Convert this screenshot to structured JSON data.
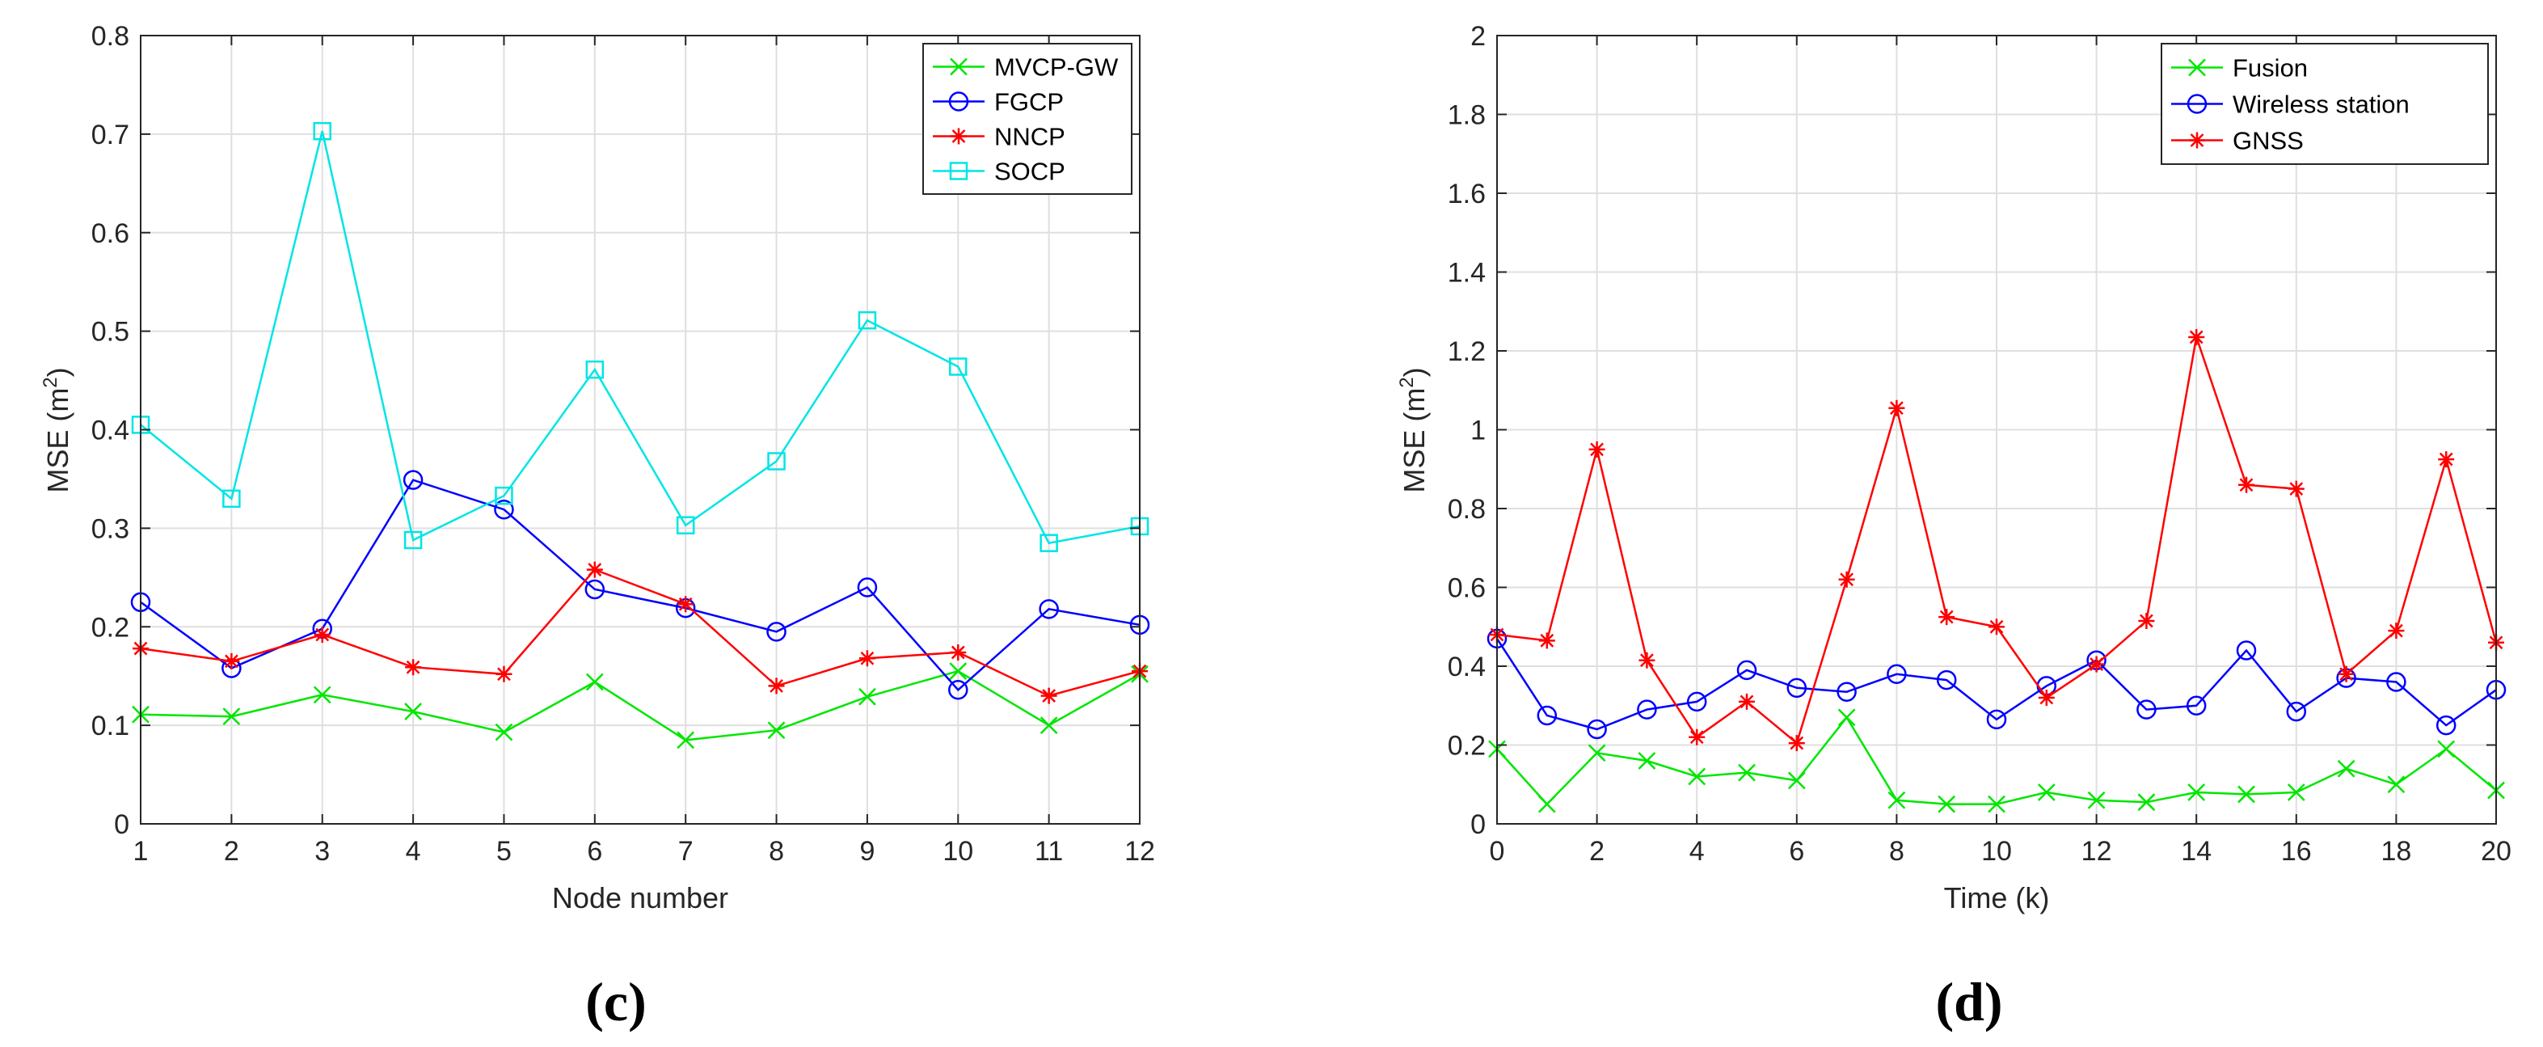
{
  "chart_data": [
    {
      "type": "line",
      "panel_label": "(c)",
      "xlabel": "Node number",
      "ylabel_text": "MSE (m",
      "ylabel_sup": "2",
      "ylabel_close": ")",
      "xlim": [
        1,
        12
      ],
      "ylim": [
        0,
        0.8
      ],
      "xticks": [
        1,
        2,
        3,
        4,
        5,
        6,
        7,
        8,
        9,
        10,
        11,
        12
      ],
      "yticks": [
        0,
        0.1,
        0.2,
        0.3,
        0.4,
        0.5,
        0.6,
        0.7,
        0.8
      ],
      "grid": true,
      "legend_position": "top-right",
      "x": [
        1,
        2,
        3,
        4,
        5,
        6,
        7,
        8,
        9,
        10,
        11,
        12
      ],
      "series": [
        {
          "name": "MVCP-GW",
          "color": "#00e600",
          "marker": "x",
          "values": [
            0.111,
            0.109,
            0.131,
            0.114,
            0.093,
            0.144,
            0.085,
            0.095,
            0.129,
            0.155,
            0.1,
            0.152
          ]
        },
        {
          "name": "FGCP",
          "color": "#0000ff",
          "marker": "circle",
          "values": [
            0.225,
            0.158,
            0.198,
            0.349,
            0.319,
            0.238,
            0.219,
            0.195,
            0.24,
            0.136,
            0.218,
            0.202
          ]
        },
        {
          "name": "NNCP",
          "color": "#ff0000",
          "marker": "star",
          "values": [
            0.178,
            0.165,
            0.192,
            0.159,
            0.152,
            0.258,
            0.223,
            0.14,
            0.168,
            0.174,
            0.13,
            0.155
          ]
        },
        {
          "name": "SOCP",
          "color": "#00e5e5",
          "marker": "square",
          "values": [
            0.405,
            0.33,
            0.703,
            0.288,
            0.333,
            0.461,
            0.303,
            0.368,
            0.511,
            0.464,
            0.285,
            0.302
          ]
        }
      ]
    },
    {
      "type": "line",
      "panel_label": "(d)",
      "xlabel": "Time (k)",
      "ylabel_text": "MSE (m",
      "ylabel_sup": "2",
      "ylabel_close": ")",
      "xlim": [
        0,
        20
      ],
      "ylim": [
        0,
        2
      ],
      "xticks": [
        0,
        2,
        4,
        6,
        8,
        10,
        12,
        14,
        16,
        18,
        20
      ],
      "yticks": [
        0,
        0.2,
        0.4,
        0.6,
        0.8,
        1,
        1.2,
        1.4,
        1.6,
        1.8,
        2
      ],
      "grid": true,
      "legend_position": "top-right",
      "x": [
        0,
        1,
        2,
        3,
        4,
        5,
        6,
        7,
        8,
        9,
        10,
        11,
        12,
        13,
        14,
        15,
        16,
        17,
        18,
        19,
        20
      ],
      "series": [
        {
          "name": "Fusion",
          "color": "#00e600",
          "marker": "x",
          "values": [
            0.19,
            0.05,
            0.18,
            0.16,
            0.12,
            0.13,
            0.11,
            0.27,
            0.06,
            0.05,
            0.05,
            0.08,
            0.06,
            0.055,
            0.08,
            0.075,
            0.08,
            0.14,
            0.1,
            0.19,
            0.085
          ]
        },
        {
          "name": "Wireless station",
          "color": "#0000ff",
          "marker": "circle",
          "values": [
            0.47,
            0.275,
            0.24,
            0.29,
            0.31,
            0.39,
            0.345,
            0.335,
            0.38,
            0.365,
            0.265,
            0.35,
            0.415,
            0.29,
            0.3,
            0.44,
            0.285,
            0.37,
            0.36,
            0.25,
            0.34
          ]
        },
        {
          "name": "GNSS",
          "color": "#ff0000",
          "marker": "star",
          "values": [
            0.48,
            0.465,
            0.95,
            0.415,
            0.22,
            0.31,
            0.205,
            0.62,
            1.055,
            0.525,
            0.5,
            0.32,
            0.405,
            0.515,
            1.235,
            0.86,
            0.85,
            0.38,
            0.49,
            0.925,
            0.46
          ]
        }
      ]
    }
  ]
}
